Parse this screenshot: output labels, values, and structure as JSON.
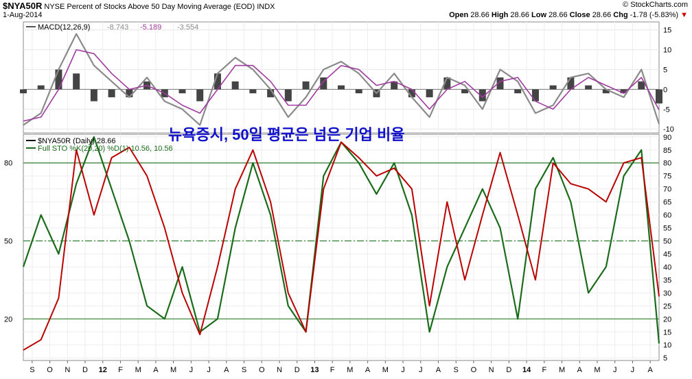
{
  "header": {
    "symbol": "$NYA50R",
    "description": "NYSE Percent of Stocks Above 50 Day Moving Average (EOD)",
    "exchange": "INDX",
    "date": "1-Aug-2014",
    "brand": "© StockCharts.com",
    "open_label": "Open",
    "open_value": "28.66",
    "high_label": "High",
    "high_value": "28.66",
    "low_label": "Low",
    "low_value": "28.66",
    "close_label": "Close",
    "close_value": "28.66",
    "chg_label": "Chg",
    "chg_value": "-1.78 (-5.83%)",
    "chg_arrow": "▼"
  },
  "annotation": "뉴욕증시, 50일 평균은 넘은 기업 비율",
  "colors": {
    "price_black": "#000000",
    "price_red": "#bb0000",
    "sto_green": "#1a6b1a",
    "macd_gray": "#8a8a8a",
    "macd_signal": "#a03aa0",
    "histogram": "#444444",
    "annotation": "#1010cc",
    "ref_lines": "#2e7d2e"
  },
  "chart_data": [
    {
      "type": "line",
      "panel": "MACD",
      "legend": [
        "MACD(12,26,9)",
        "-8.743",
        "-5.189",
        "-3.554"
      ],
      "ylim": [
        -11,
        17
      ],
      "y_ticks": [
        15,
        10,
        5,
        0,
        -5,
        -10
      ],
      "x": [
        "2011-08",
        "2011-09",
        "2011-10",
        "2011-11",
        "2011-12",
        "2012-01",
        "2012-02",
        "2012-03",
        "2012-04",
        "2012-05",
        "2012-06",
        "2012-07",
        "2012-08",
        "2012-09",
        "2012-10",
        "2012-11",
        "2012-12",
        "2013-01",
        "2013-02",
        "2013-03",
        "2013-04",
        "2013-05",
        "2013-06",
        "2013-07",
        "2013-08",
        "2013-09",
        "2013-10",
        "2013-11",
        "2013-12",
        "2014-01",
        "2014-02",
        "2014-03",
        "2014-04",
        "2014-05",
        "2014-06",
        "2014-07",
        "2014-08"
      ],
      "series": [
        {
          "role": "macd",
          "values": [
            -9,
            -6,
            5,
            14,
            6,
            2,
            -2,
            3,
            -3,
            -5,
            -9,
            4,
            8,
            5,
            0,
            -7,
            -2,
            5,
            7,
            4,
            -1,
            4,
            -2,
            -7,
            3,
            1,
            -5,
            5,
            2,
            -6,
            -4,
            3,
            4,
            0,
            -2,
            5,
            -8.743
          ]
        },
        {
          "role": "signal",
          "values": [
            -8,
            -7,
            0,
            10,
            9,
            4,
            0,
            1,
            -1,
            -4,
            -6,
            0,
            6,
            6,
            2,
            -4,
            -4,
            2,
            6,
            5,
            1,
            2,
            0,
            -5,
            0,
            2,
            -2,
            2,
            3,
            -3,
            -5,
            0,
            3,
            1,
            -1,
            3,
            -5.189
          ]
        },
        {
          "role": "histogram",
          "values": [
            -1,
            1,
            5,
            4,
            -3,
            -2,
            -2,
            2,
            -2,
            -1,
            -3,
            4,
            2,
            -1,
            -2,
            -3,
            2,
            3,
            1,
            -1,
            -2,
            2,
            -2,
            -2,
            3,
            -1,
            -3,
            3,
            -1,
            -3,
            1,
            3,
            1,
            -1,
            -1,
            2,
            -3.554
          ]
        }
      ]
    },
    {
      "type": "line",
      "panel": "price",
      "legend": [
        "$NYA50R (Daily) 28.66",
        "Full STO %K(20,20) %D(1) 10.56, 10.56"
      ],
      "ylim": [
        4,
        91
      ],
      "right_ticks": [
        90,
        85,
        80,
        75,
        70,
        65,
        60,
        55,
        50,
        45,
        40,
        35,
        30,
        25,
        20,
        15,
        10,
        5
      ],
      "left_ticks": [
        80,
        50,
        20
      ],
      "x_ticks": [
        "S",
        "O",
        "N",
        "D",
        "12",
        "F",
        "M",
        "A",
        "M",
        "J",
        "J",
        "A",
        "S",
        "O",
        "N",
        "D",
        "13",
        "F",
        "M",
        "A",
        "M",
        "J",
        "J",
        "A",
        "S",
        "O",
        "N",
        "D",
        "14",
        "F",
        "M",
        "A",
        "M",
        "J",
        "J",
        "A"
      ],
      "year_ticks": [
        "12",
        "13",
        "14"
      ],
      "x": [
        "2011-08",
        "2011-09",
        "2011-10",
        "2011-11",
        "2011-12",
        "2012-01",
        "2012-02",
        "2012-03",
        "2012-04",
        "2012-05",
        "2012-06",
        "2012-07",
        "2012-08",
        "2012-09",
        "2012-10",
        "2012-11",
        "2012-12",
        "2013-01",
        "2013-02",
        "2013-03",
        "2013-04",
        "2013-05",
        "2013-06",
        "2013-07",
        "2013-08",
        "2013-09",
        "2013-10",
        "2013-11",
        "2013-12",
        "2014-01",
        "2014-02",
        "2014-03",
        "2014-04",
        "2014-05",
        "2014-06",
        "2014-07",
        "2014-08"
      ],
      "series": [
        {
          "name": "$NYA50R (Daily)",
          "values": [
            8,
            12,
            28,
            85,
            60,
            82,
            86,
            75,
            55,
            30,
            14,
            40,
            70,
            85,
            65,
            30,
            15,
            70,
            88,
            82,
            75,
            78,
            70,
            25,
            65,
            35,
            60,
            84,
            60,
            35,
            80,
            72,
            70,
            65,
            80,
            82,
            28.66
          ]
        },
        {
          "name": "Full STO %K(20,20) %D(1)",
          "values": [
            40,
            60,
            45,
            72,
            90,
            70,
            50,
            25,
            20,
            40,
            15,
            20,
            55,
            80,
            60,
            25,
            15,
            75,
            88,
            80,
            68,
            80,
            60,
            15,
            40,
            55,
            70,
            55,
            20,
            70,
            82,
            65,
            30,
            40,
            75,
            85,
            10.56
          ]
        }
      ]
    }
  ]
}
